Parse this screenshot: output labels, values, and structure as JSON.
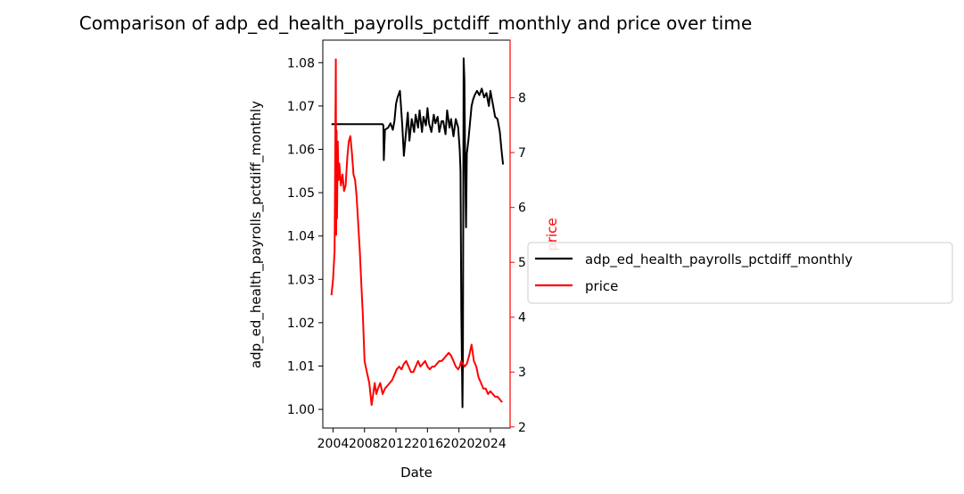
{
  "chart_data": {
    "type": "line",
    "title": "Comparison of adp_ed_health_payrolls_pctdiff_monthly and price over time",
    "xlabel": "Date",
    "ylabel_left": "adp_ed_health_payrolls_pctdiff_monthly",
    "ylabel_right": "price",
    "xlim": [
      2002.7,
      2026.5
    ],
    "ylim_left": [
      0.9957,
      1.0852
    ],
    "ylim_right": [
      1.98,
      9.05
    ],
    "x_ticks": [
      2004,
      2008,
      2012,
      2016,
      2020,
      2024
    ],
    "x_tick_labels": [
      "2004",
      "2008",
      "2012",
      "2016",
      "2020",
      "2024"
    ],
    "y_left_ticks": [
      1.0,
      1.01,
      1.02,
      1.03,
      1.04,
      1.05,
      1.06,
      1.07,
      1.08
    ],
    "y_left_tick_labels": [
      "1.00",
      "1.01",
      "1.02",
      "1.03",
      "1.04",
      "1.05",
      "1.06",
      "1.07",
      "1.08"
    ],
    "y_right_ticks": [
      2,
      3,
      4,
      5,
      6,
      7,
      8
    ],
    "y_right_tick_labels": [
      "2",
      "3",
      "4",
      "5",
      "6",
      "7",
      "8"
    ],
    "legend_placement": "center-right outside",
    "series": [
      {
        "name": "adp_ed_health_payrolls_pctdiff_monthly",
        "axis": "left",
        "color": "#000000",
        "x": [
          2003.8,
          2006.0,
          2008.0,
          2010.0,
          2010.3,
          2010.4,
          2010.45,
          2010.6,
          2011.0,
          2011.3,
          2011.6,
          2011.8,
          2012.0,
          2012.2,
          2012.5,
          2012.8,
          2013.0,
          2013.3,
          2013.5,
          2013.7,
          2014.0,
          2014.3,
          2014.5,
          2014.8,
          2015.0,
          2015.3,
          2015.5,
          2015.8,
          2016.0,
          2016.2,
          2016.5,
          2016.8,
          2017.0,
          2017.3,
          2017.5,
          2017.8,
          2018.0,
          2018.3,
          2018.5,
          2018.8,
          2019.0,
          2019.3,
          2019.6,
          2019.9,
          2020.1,
          2020.2,
          2020.3,
          2020.4,
          2020.45,
          2020.5,
          2020.6,
          2020.7,
          2020.8,
          2020.9,
          2021.0,
          2021.2,
          2021.4,
          2021.6,
          2021.8,
          2022.0,
          2022.3,
          2022.6,
          2022.9,
          2023.2,
          2023.5,
          2023.8,
          2024.0,
          2024.3,
          2024.6,
          2024.9,
          2025.2,
          2025.4,
          2025.6
        ],
        "y": [
          1.0658,
          1.0658,
          1.0658,
          1.0658,
          1.0658,
          1.0655,
          1.0575,
          1.0645,
          1.065,
          1.066,
          1.0645,
          1.0665,
          1.0705,
          1.072,
          1.0735,
          1.0655,
          1.0585,
          1.0645,
          1.0685,
          1.062,
          1.067,
          1.064,
          1.068,
          1.065,
          1.069,
          1.064,
          1.0675,
          1.0655,
          1.0695,
          1.066,
          1.064,
          1.068,
          1.066,
          1.0675,
          1.064,
          1.0665,
          1.0665,
          1.0635,
          1.069,
          1.065,
          1.067,
          1.063,
          1.067,
          1.065,
          1.06,
          1.055,
          1.023,
          1.007,
          1.0005,
          1.012,
          1.081,
          1.076,
          1.055,
          1.042,
          1.059,
          1.062,
          1.066,
          1.07,
          1.0715,
          1.0725,
          1.0735,
          1.0725,
          1.074,
          1.072,
          1.073,
          1.07,
          1.0735,
          1.0705,
          1.0675,
          1.067,
          1.064,
          1.06,
          1.0565
        ]
      },
      {
        "name": "price",
        "axis": "right",
        "color": "#ff0000",
        "x": [
          2003.8,
          2004.0,
          2004.2,
          2004.35,
          2004.4,
          2004.45,
          2004.5,
          2004.6,
          2004.7,
          2004.8,
          2005.0,
          2005.2,
          2005.4,
          2005.6,
          2005.8,
          2006.0,
          2006.2,
          2006.4,
          2006.6,
          2006.8,
          2007.0,
          2007.2,
          2007.4,
          2007.6,
          2007.8,
          2008.0,
          2008.3,
          2008.6,
          2008.9,
          2009.1,
          2009.3,
          2009.5,
          2009.7,
          2010.0,
          2010.3,
          2010.6,
          2010.9,
          2011.2,
          2011.5,
          2011.8,
          2012.1,
          2012.4,
          2012.7,
          2013.0,
          2013.3,
          2013.6,
          2013.9,
          2014.2,
          2014.5,
          2014.8,
          2015.1,
          2015.4,
          2015.7,
          2016.0,
          2016.3,
          2016.6,
          2016.9,
          2017.2,
          2017.5,
          2017.8,
          2018.1,
          2018.4,
          2018.7,
          2019.0,
          2019.3,
          2019.6,
          2019.9,
          2020.1,
          2020.3,
          2020.5,
          2020.7,
          2021.0,
          2021.3,
          2021.6,
          2021.9,
          2022.2,
          2022.5,
          2022.8,
          2023.1,
          2023.4,
          2023.7,
          2024.0,
          2024.3,
          2024.6,
          2024.9,
          2025.2,
          2025.5
        ],
        "y": [
          4.4,
          4.7,
          5.2,
          8.7,
          5.5,
          7.4,
          5.8,
          7.2,
          6.5,
          6.8,
          6.4,
          6.6,
          6.3,
          6.4,
          6.9,
          7.2,
          7.3,
          7.0,
          6.6,
          6.5,
          6.2,
          5.7,
          5.2,
          4.6,
          4.0,
          3.2,
          3.0,
          2.8,
          2.4,
          2.6,
          2.8,
          2.6,
          2.7,
          2.8,
          2.6,
          2.7,
          2.75,
          2.8,
          2.85,
          2.95,
          3.05,
          3.1,
          3.05,
          3.15,
          3.2,
          3.1,
          3.0,
          3.0,
          3.1,
          3.2,
          3.1,
          3.15,
          3.2,
          3.1,
          3.05,
          3.1,
          3.1,
          3.15,
          3.2,
          3.2,
          3.25,
          3.3,
          3.35,
          3.3,
          3.2,
          3.1,
          3.05,
          3.1,
          3.2,
          3.15,
          3.1,
          3.15,
          3.3,
          3.5,
          3.2,
          3.1,
          2.9,
          2.8,
          2.7,
          2.7,
          2.6,
          2.65,
          2.6,
          2.55,
          2.55,
          2.5,
          2.45
        ]
      }
    ]
  }
}
